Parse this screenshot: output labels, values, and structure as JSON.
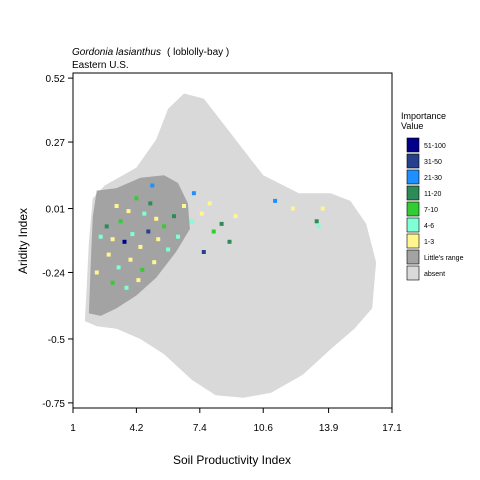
{
  "chart_data": {
    "type": "heatmap",
    "title": "Gordonia lasianthus",
    "title_common": " ( loblolly-bay )",
    "subtitle": "Eastern U.S.",
    "xlabel": "Soil Productivity Index",
    "ylabel": "Aridity Index",
    "xlim": [
      1,
      17.1
    ],
    "ylim": [
      -0.77,
      0.54
    ],
    "x_ticks": [
      1,
      4.2,
      7.4,
      10.6,
      13.9,
      17.1
    ],
    "x_tick_labels": [
      "1",
      "4.2",
      "7.4",
      "10.6",
      "13.9",
      "17.1"
    ],
    "y_ticks": [
      0.52,
      0.27,
      0.01,
      -0.24,
      -0.5,
      -0.75
    ],
    "y_tick_labels": [
      "0.52",
      "0.27",
      "0.01",
      "-0.24",
      "-0.5",
      "-0.75"
    ],
    "grid": false,
    "legend_position": "right",
    "legend": {
      "title_line1": "Importance",
      "title_line2": "Value",
      "entries": [
        {
          "label": "51-100",
          "color": "#00008b"
        },
        {
          "label": "31-50",
          "color": "#27408b"
        },
        {
          "label": "21-30",
          "color": "#1e90ff"
        },
        {
          "label": "11-20",
          "color": "#2e8b57"
        },
        {
          "label": "7-10",
          "color": "#32cd32"
        },
        {
          "label": "4-6",
          "color": "#7fffd4"
        },
        {
          "label": "1-3",
          "color": "#fff68f"
        },
        {
          "label": "Little's range",
          "color": "#a3a3a3"
        },
        {
          "label": "absent",
          "color": "#d9d9d9"
        }
      ]
    },
    "absent_region": [
      [
        1.6,
        -0.43
      ],
      [
        1.7,
        -0.28
      ],
      [
        1.8,
        -0.12
      ],
      [
        2.0,
        0.05
      ],
      [
        2.6,
        0.1
      ],
      [
        4.2,
        0.17
      ],
      [
        5.2,
        0.28
      ],
      [
        5.8,
        0.4
      ],
      [
        6.6,
        0.46
      ],
      [
        7.6,
        0.44
      ],
      [
        8.6,
        0.34
      ],
      [
        9.6,
        0.24
      ],
      [
        10.6,
        0.14
      ],
      [
        12.4,
        0.07
      ],
      [
        14.0,
        0.07
      ],
      [
        15.0,
        0.04
      ],
      [
        15.8,
        -0.05
      ],
      [
        16.3,
        -0.2
      ],
      [
        16.1,
        -0.38
      ],
      [
        15.2,
        -0.46
      ],
      [
        14.0,
        -0.54
      ],
      [
        12.6,
        -0.64
      ],
      [
        11.0,
        -0.71
      ],
      [
        9.6,
        -0.73
      ],
      [
        8.2,
        -0.72
      ],
      [
        7.0,
        -0.66
      ],
      [
        5.6,
        -0.56
      ],
      [
        4.4,
        -0.5
      ],
      [
        3.2,
        -0.46
      ],
      [
        2.2,
        -0.45
      ]
    ],
    "littles_range_region": [
      [
        1.8,
        -0.4
      ],
      [
        1.9,
        -0.2
      ],
      [
        2.0,
        -0.02
      ],
      [
        2.2,
        0.08
      ],
      [
        3.2,
        0.09
      ],
      [
        4.4,
        0.13
      ],
      [
        5.6,
        0.14
      ],
      [
        6.3,
        0.11
      ],
      [
        6.8,
        0.03
      ],
      [
        6.9,
        -0.07
      ],
      [
        6.2,
        -0.16
      ],
      [
        5.2,
        -0.26
      ],
      [
        4.2,
        -0.33
      ],
      [
        3.2,
        -0.38
      ],
      [
        2.4,
        -0.41
      ]
    ],
    "points": [
      {
        "x": 5.0,
        "y": 0.1,
        "iv": "21-30"
      },
      {
        "x": 7.1,
        "y": 0.07,
        "iv": "21-30"
      },
      {
        "x": 11.2,
        "y": 0.04,
        "iv": "21-30"
      },
      {
        "x": 4.2,
        "y": 0.05,
        "iv": "7-10"
      },
      {
        "x": 4.6,
        "y": -0.01,
        "iv": "4-6"
      },
      {
        "x": 3.2,
        "y": 0.02,
        "iv": "1-3"
      },
      {
        "x": 3.4,
        "y": -0.04,
        "iv": "7-10"
      },
      {
        "x": 3.8,
        "y": 0.0,
        "iv": "1-3"
      },
      {
        "x": 2.7,
        "y": -0.06,
        "iv": "11-20"
      },
      {
        "x": 2.4,
        "y": -0.1,
        "iv": "4-6"
      },
      {
        "x": 3.0,
        "y": -0.11,
        "iv": "1-3"
      },
      {
        "x": 3.6,
        "y": -0.12,
        "iv": "51-100"
      },
      {
        "x": 4.0,
        "y": -0.09,
        "iv": "4-6"
      },
      {
        "x": 4.4,
        "y": -0.14,
        "iv": "1-3"
      },
      {
        "x": 4.8,
        "y": -0.08,
        "iv": "31-50"
      },
      {
        "x": 5.2,
        "y": -0.03,
        "iv": "1-3"
      },
      {
        "x": 5.6,
        "y": -0.06,
        "iv": "7-10"
      },
      {
        "x": 6.1,
        "y": -0.02,
        "iv": "11-20"
      },
      {
        "x": 6.6,
        "y": 0.02,
        "iv": "1-3"
      },
      {
        "x": 7.0,
        "y": -0.04,
        "iv": "4-6"
      },
      {
        "x": 7.5,
        "y": -0.01,
        "iv": "1-3"
      },
      {
        "x": 7.9,
        "y": 0.03,
        "iv": "1-3"
      },
      {
        "x": 8.1,
        "y": -0.08,
        "iv": "7-10"
      },
      {
        "x": 8.5,
        "y": -0.05,
        "iv": "11-20"
      },
      {
        "x": 8.9,
        "y": -0.12,
        "iv": "11-20"
      },
      {
        "x": 9.2,
        "y": -0.02,
        "iv": "1-3"
      },
      {
        "x": 7.6,
        "y": -0.16,
        "iv": "31-50"
      },
      {
        "x": 6.3,
        "y": -0.1,
        "iv": "4-6"
      },
      {
        "x": 5.8,
        "y": -0.15,
        "iv": "4-6"
      },
      {
        "x": 5.1,
        "y": -0.2,
        "iv": "1-3"
      },
      {
        "x": 4.5,
        "y": -0.23,
        "iv": "7-10"
      },
      {
        "x": 3.9,
        "y": -0.19,
        "iv": "1-3"
      },
      {
        "x": 3.3,
        "y": -0.22,
        "iv": "4-6"
      },
      {
        "x": 2.8,
        "y": -0.17,
        "iv": "1-3"
      },
      {
        "x": 2.2,
        "y": -0.24,
        "iv": "1-3"
      },
      {
        "x": 3.0,
        "y": -0.28,
        "iv": "7-10"
      },
      {
        "x": 3.7,
        "y": -0.3,
        "iv": "4-6"
      },
      {
        "x": 4.3,
        "y": -0.27,
        "iv": "1-3"
      },
      {
        "x": 5.3,
        "y": -0.11,
        "iv": "1-3"
      },
      {
        "x": 4.9,
        "y": 0.03,
        "iv": "11-20"
      },
      {
        "x": 12.1,
        "y": 0.01,
        "iv": "1-3"
      },
      {
        "x": 13.3,
        "y": -0.04,
        "iv": "11-20"
      },
      {
        "x": 13.6,
        "y": 0.01,
        "iv": "1-3"
      },
      {
        "x": 13.4,
        "y": -0.06,
        "iv": "4-6"
      }
    ]
  }
}
